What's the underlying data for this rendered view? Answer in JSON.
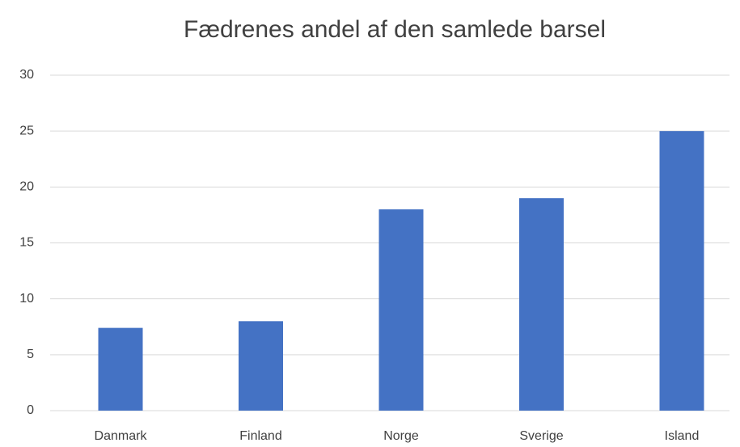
{
  "chart_data": {
    "type": "bar",
    "title": "Fædrenes andel af den samlede barsel",
    "categories": [
      "Danmark",
      "Finland",
      "Norge",
      "Sverige",
      "Island"
    ],
    "values": [
      7.4,
      8,
      18,
      19,
      25
    ],
    "color": "#4472c4",
    "ylim": [
      0,
      30
    ],
    "yticks": [
      0,
      5,
      10,
      15,
      20,
      25,
      30
    ],
    "grid": true
  }
}
